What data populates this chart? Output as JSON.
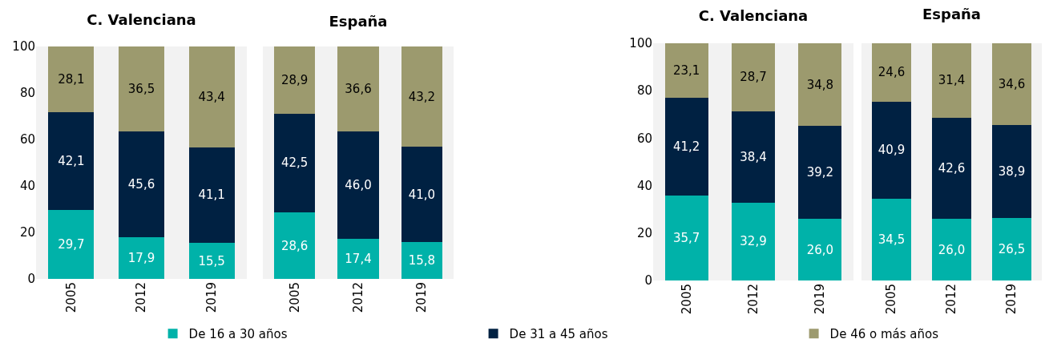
{
  "chart_data": [
    {
      "type": "bar",
      "stacked": true,
      "title": "C. Valenciana",
      "categories": [
        "2005",
        "2012",
        "2019"
      ],
      "ylim": [
        0,
        100
      ],
      "yticks": [
        0,
        20,
        40,
        60,
        80,
        100
      ],
      "legend": "bottom",
      "series": [
        {
          "name": "De 16 a 30 años",
          "color": "#00b2a9",
          "values": [
            29.7,
            17.9,
            15.5
          ],
          "value_labels": [
            "29,7",
            "17,9",
            "15,5"
          ]
        },
        {
          "name": "De 31 a 45 años",
          "color": "#002142",
          "values": [
            42.1,
            45.6,
            41.1
          ],
          "value_labels": [
            "42,1",
            "45,6",
            "41,1"
          ]
        },
        {
          "name": "De 46 o más años",
          "color": "#9c9a6e",
          "values": [
            28.1,
            36.5,
            43.4
          ],
          "value_labels": [
            "28,1",
            "36,5",
            "43,4"
          ]
        }
      ]
    },
    {
      "type": "bar",
      "stacked": true,
      "title": "España",
      "categories": [
        "2005",
        "2012",
        "2019"
      ],
      "ylim": [
        0,
        100
      ],
      "yticks": [
        0,
        20,
        40,
        60,
        80,
        100
      ],
      "tick_labels": "x",
      "series": [
        {
          "color": "#00b2a9",
          "values": [
            28.6,
            17.4,
            15.8
          ],
          "value_labels": [
            "28,6",
            "17,4",
            "15,8"
          ]
        },
        {
          "color": "#002142",
          "values": [
            42.5,
            46.0,
            41.0
          ],
          "value_labels": [
            "42,5",
            "46,0",
            "41,0"
          ]
        },
        {
          "color": "#9c9a6e",
          "values": [
            28.9,
            36.6,
            43.2
          ],
          "value_labels": [
            "28,9",
            "36,6",
            "43,2"
          ]
        }
      ]
    },
    {
      "type": "bar",
      "stacked": true,
      "title": "C. Valenciana",
      "categories": [
        "2005",
        "2012",
        "2019"
      ],
      "ylim": [
        0,
        100
      ],
      "yticks": [
        0,
        20,
        40,
        60,
        80,
        100
      ],
      "series": [
        {
          "color": "#00b2a9",
          "values": [
            35.7,
            32.9,
            26.0
          ],
          "value_labels": [
            "35,7",
            "32,9",
            "26,0"
          ]
        },
        {
          "color": "#002142",
          "values": [
            41.2,
            38.4,
            39.2
          ],
          "value_labels": [
            "41,2",
            "38,4",
            "39,2"
          ]
        },
        {
          "color": "#9c9a6e",
          "values": [
            23.1,
            28.7,
            34.8
          ],
          "value_labels": [
            "23,1",
            "28,7",
            "34,8"
          ]
        }
      ]
    },
    {
      "type": "bar",
      "stacked": true,
      "title": "España",
      "categories": [
        "2005",
        "2012",
        "2019"
      ],
      "ylim": [
        0,
        100
      ],
      "yticks": [
        0,
        20,
        40,
        60,
        80,
        100
      ],
      "tick_labels": "x",
      "series": [
        {
          "color": "#00b2a9",
          "values": [
            34.5,
            26.0,
            26.5
          ],
          "value_labels": [
            "34,5",
            "26,0",
            "26,5"
          ]
        },
        {
          "color": "#002142",
          "values": [
            40.9,
            42.6,
            38.9
          ],
          "value_labels": [
            "40,9",
            "42,6",
            "38,9"
          ]
        },
        {
          "color": "#9c9a6e",
          "values": [
            24.6,
            31.4,
            34.6
          ],
          "value_labels": [
            "24,6",
            "31,4",
            "34,6"
          ]
        }
      ]
    }
  ]
}
